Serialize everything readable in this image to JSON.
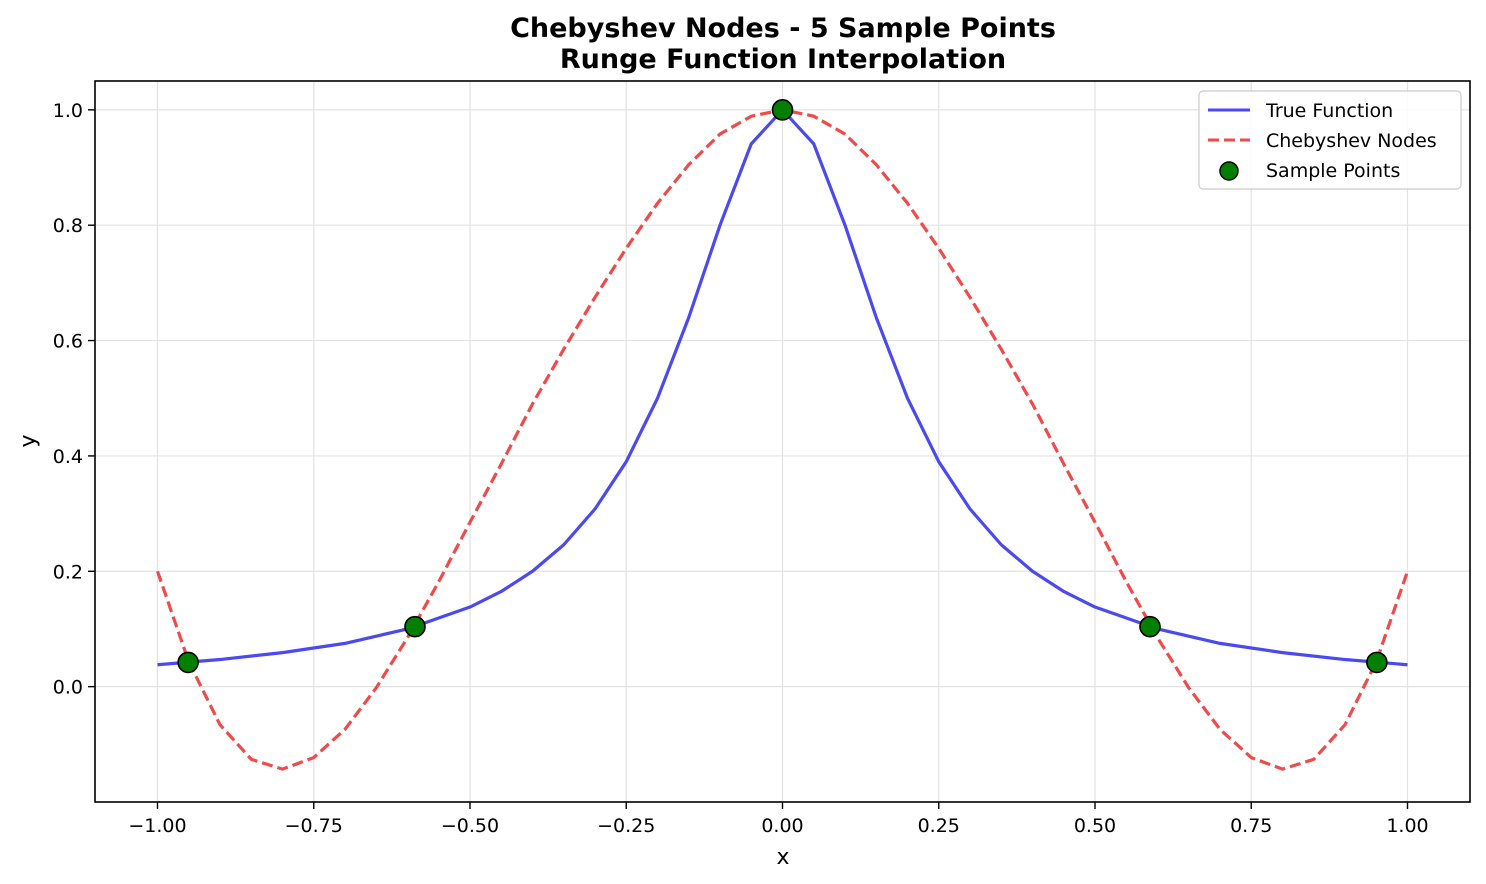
{
  "chart_data": {
    "type": "line",
    "title_line1": "Chebyshev Nodes - 5 Sample Points",
    "title_line2": "Runge Function Interpolation",
    "xlabel": "x",
    "ylabel": "y",
    "xlim": [
      -1.1,
      1.1
    ],
    "ylim": [
      -0.2,
      1.05
    ],
    "grid": true,
    "legend_position": "top-right",
    "x_ticks": [
      -1.0,
      -0.75,
      -0.5,
      -0.25,
      0.0,
      0.25,
      0.5,
      0.75,
      1.0
    ],
    "x_tick_labels": [
      "−1.00",
      "−0.75",
      "−0.50",
      "−0.25",
      "0.00",
      "0.25",
      "0.50",
      "0.75",
      "1.00"
    ],
    "y_ticks": [
      0.0,
      0.2,
      0.4,
      0.6,
      0.8,
      1.0
    ],
    "y_tick_labels": [
      "0.0",
      "0.2",
      "0.4",
      "0.6",
      "0.8",
      "1.0"
    ],
    "series": [
      {
        "name": "True Function",
        "style": "solid",
        "color": "#4a4af0",
        "x": [
          -1.0,
          -0.9,
          -0.8,
          -0.7,
          -0.6,
          -0.5,
          -0.45,
          -0.4,
          -0.35,
          -0.3,
          -0.25,
          -0.2,
          -0.15,
          -0.1,
          -0.05,
          0.0,
          0.05,
          0.1,
          0.15,
          0.2,
          0.25,
          0.3,
          0.35,
          0.4,
          0.45,
          0.5,
          0.6,
          0.7,
          0.8,
          0.9,
          1.0
        ],
        "y": [
          0.038,
          0.047,
          0.059,
          0.075,
          0.1,
          0.138,
          0.165,
          0.2,
          0.246,
          0.308,
          0.39,
          0.5,
          0.64,
          0.8,
          0.941,
          1.0,
          0.941,
          0.8,
          0.64,
          0.5,
          0.39,
          0.308,
          0.246,
          0.2,
          0.165,
          0.138,
          0.1,
          0.075,
          0.059,
          0.047,
          0.038
        ]
      },
      {
        "name": "Chebyshev Nodes",
        "style": "dashed",
        "color": "#f04a4a",
        "x": [
          -1.0,
          -0.95,
          -0.9,
          -0.85,
          -0.8,
          -0.75,
          -0.7,
          -0.65,
          -0.6,
          -0.55,
          -0.5,
          -0.45,
          -0.4,
          -0.35,
          -0.3,
          -0.25,
          -0.2,
          -0.15,
          -0.1,
          -0.05,
          0.0,
          0.05,
          0.1,
          0.15,
          0.2,
          0.25,
          0.3,
          0.35,
          0.4,
          0.45,
          0.5,
          0.55,
          0.6,
          0.65,
          0.7,
          0.75,
          0.8,
          0.85,
          0.9,
          0.95,
          1.0
        ],
        "y": [
          0.2,
          0.043,
          -0.066,
          -0.126,
          -0.143,
          -0.123,
          -0.074,
          -0.002,
          0.085,
          0.182,
          0.285,
          0.386,
          0.49,
          0.585,
          0.675,
          0.76,
          0.838,
          0.905,
          0.958,
          0.989,
          1.0,
          0.989,
          0.958,
          0.905,
          0.838,
          0.76,
          0.675,
          0.585,
          0.49,
          0.386,
          0.285,
          0.182,
          0.085,
          -0.002,
          -0.074,
          -0.123,
          -0.143,
          -0.126,
          -0.066,
          0.043,
          0.2
        ]
      }
    ],
    "points": {
      "name": "Sample Points",
      "color": "#007f00",
      "x": [
        -0.951,
        -0.588,
        0.0,
        0.588,
        0.951
      ],
      "y": [
        0.042,
        0.104,
        1.0,
        0.104,
        0.042
      ]
    }
  }
}
